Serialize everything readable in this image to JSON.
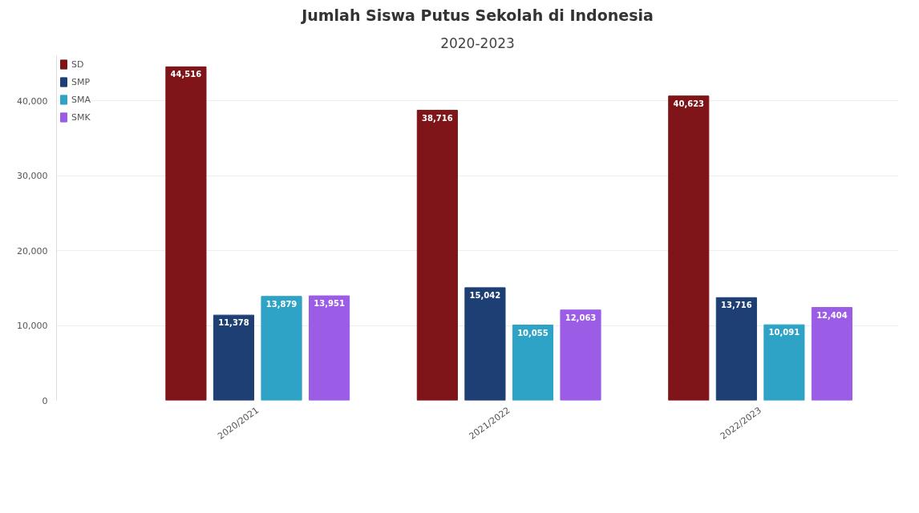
{
  "chart_data": {
    "type": "bar",
    "title": "Jumlah Siswa Putus Sekolah di Indonesia",
    "subtitle": "2020-2023",
    "categories": [
      "2020/2021",
      "2021/2022",
      "2022/2023"
    ],
    "series": [
      {
        "name": "SD",
        "color": "#7f1518",
        "values": [
          44516,
          38716,
          40623
        ],
        "value_labels": [
          "44,516",
          "38,716",
          "40,623"
        ]
      },
      {
        "name": "SMP",
        "color": "#1d3f73",
        "values": [
          11378,
          15042,
          13716
        ],
        "value_labels": [
          "11,378",
          "15,042",
          "13,716"
        ]
      },
      {
        "name": "SMA",
        "color": "#2ea3c5",
        "values": [
          13879,
          10055,
          10091
        ],
        "value_labels": [
          "13,879",
          "10,055",
          "10,091"
        ]
      },
      {
        "name": "SMK",
        "color": "#9b5de5",
        "values": [
          13951,
          12063,
          12404
        ],
        "value_labels": [
          "13,951",
          "12,063",
          "12,404"
        ]
      }
    ],
    "ylim": [
      0,
      46000
    ],
    "yticks": [
      0,
      {
        "value": 10000,
        "label": "10,000"
      },
      {
        "value": 20000,
        "label": "20,000"
      },
      {
        "value": 30000,
        "label": "30,000"
      },
      {
        "value": 40000,
        "label": "40,000"
      }
    ],
    "grid": "y",
    "legend": "top left"
  }
}
